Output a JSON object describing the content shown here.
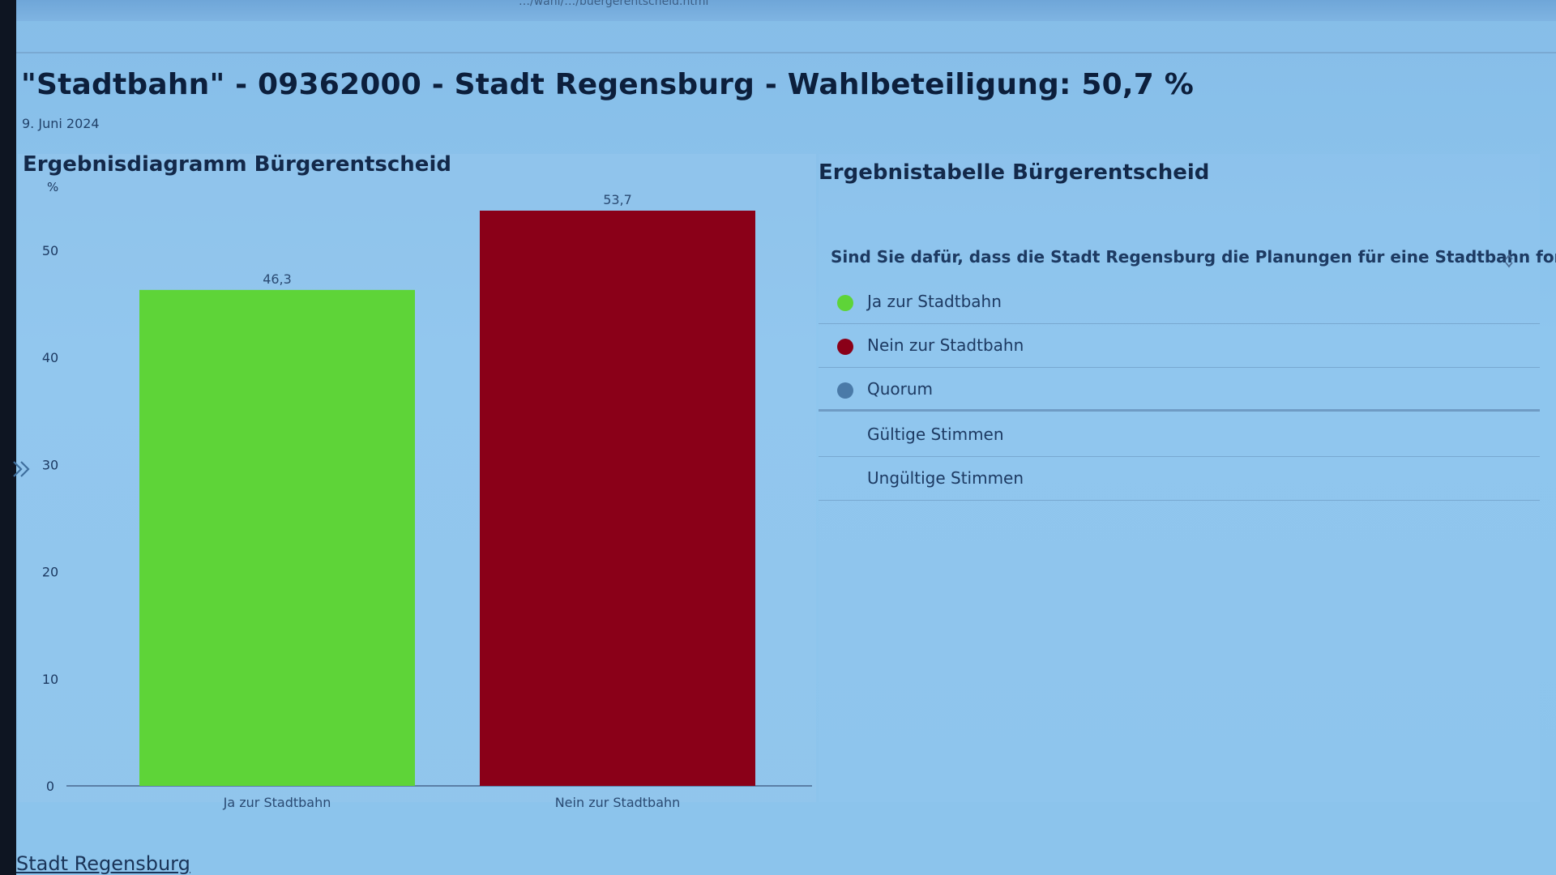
{
  "page": {
    "url": "…/wahl/…/buergerentscheid.html",
    "title": "\"Stadtbahn\" - 09362000 - Stadt Regensburg - Wahlbeteiligung: 50,7 %",
    "date": "9. Juni 2024",
    "footer_link": "Stadt Regensburg"
  },
  "chart_data": {
    "type": "bar",
    "title": "Ergebnisdiagramm Bürgerentscheid",
    "ylabel": "%",
    "ylim": [
      0,
      53.7
    ],
    "yticks": [
      "0",
      "10",
      "20",
      "30",
      "40",
      "50"
    ],
    "categories": [
      "Ja zur Stadtbahn",
      "Nein zur Stadtbahn"
    ],
    "values": [
      46.3,
      53.7
    ],
    "value_labels": [
      "46,3",
      "53,7"
    ],
    "colors": [
      "#5ed438",
      "#8a0018"
    ],
    "grid": false,
    "legend": "none"
  },
  "table": {
    "title": "Ergebnistabelle Bürgerentscheid",
    "question": "Sind Sie dafür, dass die Stadt Regensburg die Planungen für eine Stadtbahn fortsetzt?",
    "sort_icon": "sort-icon",
    "rows": [
      {
        "label": "Ja zur Stadtbahn",
        "color": "#5ed438"
      },
      {
        "label": "Nein zur Stadtbahn",
        "color": "#8a0018"
      },
      {
        "label": "Quorum",
        "color": "#4a7aa8"
      },
      {
        "label": "Gültige Stimmen",
        "color": ""
      },
      {
        "label": "Ungültige Stimmen",
        "color": ""
      }
    ]
  },
  "icons": {
    "nav": "double-chevron-right-icon"
  }
}
